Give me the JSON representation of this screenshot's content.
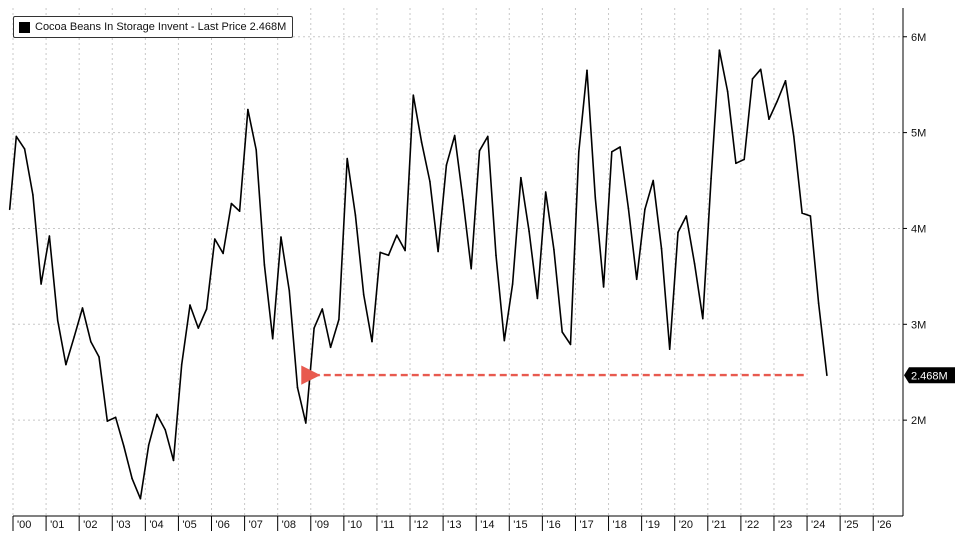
{
  "legend": {
    "label": "Cocoa Beans In Storage Invent - Last Price 2.468M"
  },
  "colors": {
    "line": "#000000",
    "annotation_arrow": "#e85a4f",
    "grid": "#c8c8c8",
    "last_price_tag_bg": "#000000",
    "last_price_tag_text": "#ffffff"
  },
  "chart_data": {
    "type": "line",
    "title": "",
    "xlabel": "",
    "ylabel": "",
    "x_tick_labels": [
      "'00",
      "'01",
      "'02",
      "'03",
      "'04",
      "'05",
      "'06",
      "'07",
      "'08",
      "'09",
      "'10",
      "'11",
      "'12",
      "'13",
      "'14",
      "'15",
      "'16",
      "'17",
      "'18",
      "'19",
      "'20",
      "'21",
      "'22",
      "'23",
      "'24",
      "'25",
      "'26"
    ],
    "y_ticks": [
      2000000,
      3000000,
      4000000,
      5000000,
      6000000
    ],
    "y_tick_labels": [
      "2M",
      "3M",
      "4M",
      "5M",
      "6M"
    ],
    "ylim": [
      1000000,
      6300000
    ],
    "xlim": [
      2000.0,
      2026.9
    ],
    "grid": true,
    "y_axis_side": "right",
    "last_price": 2468000,
    "last_price_label": "2.468M",
    "annotation": {
      "type": "dashed-arrow",
      "from_x": 2023.9,
      "to_x": 2009.1,
      "y": 2470000
    },
    "series": [
      {
        "x": [
          1999.9,
          2000.1,
          2000.35,
          2000.6,
          2000.85,
          2001.1,
          2001.35,
          2001.6,
          2001.85,
          2002.1,
          2002.35,
          2002.6,
          2002.85,
          2003.1,
          2003.35,
          2003.6,
          2003.85,
          2004.1,
          2004.35,
          2004.6,
          2004.85,
          2005.1,
          2005.35,
          2005.6,
          2005.85,
          2006.1,
          2006.35,
          2006.6,
          2006.85,
          2007.1,
          2007.35,
          2007.6,
          2007.85,
          2008.1,
          2008.35,
          2008.6,
          2008.85,
          2009.1,
          2009.35,
          2009.6,
          2009.85,
          2010.1,
          2010.35,
          2010.6,
          2010.85,
          2011.1,
          2011.35,
          2011.6,
          2011.85,
          2012.1,
          2012.35,
          2012.6,
          2012.85,
          2013.1,
          2013.35,
          2013.6,
          2013.85,
          2014.1,
          2014.35,
          2014.6,
          2014.85,
          2015.1,
          2015.35,
          2015.6,
          2015.85,
          2016.1,
          2016.35,
          2016.6,
          2016.85,
          2017.1,
          2017.35,
          2017.6,
          2017.85,
          2018.1,
          2018.35,
          2018.6,
          2018.85,
          2019.1,
          2019.35,
          2019.6,
          2019.85,
          2020.1,
          2020.35,
          2020.6,
          2020.85,
          2021.1,
          2021.35,
          2021.6,
          2021.85,
          2022.1,
          2022.35,
          2022.6,
          2022.85,
          2023.1,
          2023.35,
          2023.6,
          2023.85,
          2024.1,
          2024.35,
          2024.6
        ],
        "values": [
          4200000,
          4960000,
          4830000,
          4350000,
          3420000,
          3920000,
          3040000,
          2580000,
          2870000,
          3170000,
          2820000,
          2660000,
          1990000,
          2030000,
          1730000,
          1390000,
          1180000,
          1740000,
          2060000,
          1900000,
          1580000,
          2580000,
          3200000,
          2960000,
          3160000,
          3890000,
          3740000,
          4260000,
          4180000,
          5240000,
          4820000,
          3620000,
          2850000,
          3910000,
          3350000,
          2340000,
          1970000,
          2960000,
          3160000,
          2760000,
          3050000,
          4730000,
          4140000,
          3310000,
          2820000,
          3750000,
          3720000,
          3930000,
          3770000,
          5390000,
          4900000,
          4490000,
          3760000,
          4660000,
          4970000,
          4300000,
          3580000,
          4810000,
          4960000,
          3720000,
          2830000,
          3420000,
          4530000,
          3970000,
          3270000,
          4380000,
          3780000,
          2920000,
          2790000,
          4800000,
          5650000,
          4320000,
          3390000,
          4800000,
          4850000,
          4210000,
          3470000,
          4200000,
          4500000,
          3790000,
          2740000,
          3960000,
          4130000,
          3630000,
          3060000,
          4520000,
          5860000,
          5430000,
          4680000,
          4720000,
          5560000,
          5660000,
          5140000,
          5330000,
          5540000,
          4960000,
          4160000,
          4130000,
          3220000,
          2468000
        ]
      }
    ]
  }
}
